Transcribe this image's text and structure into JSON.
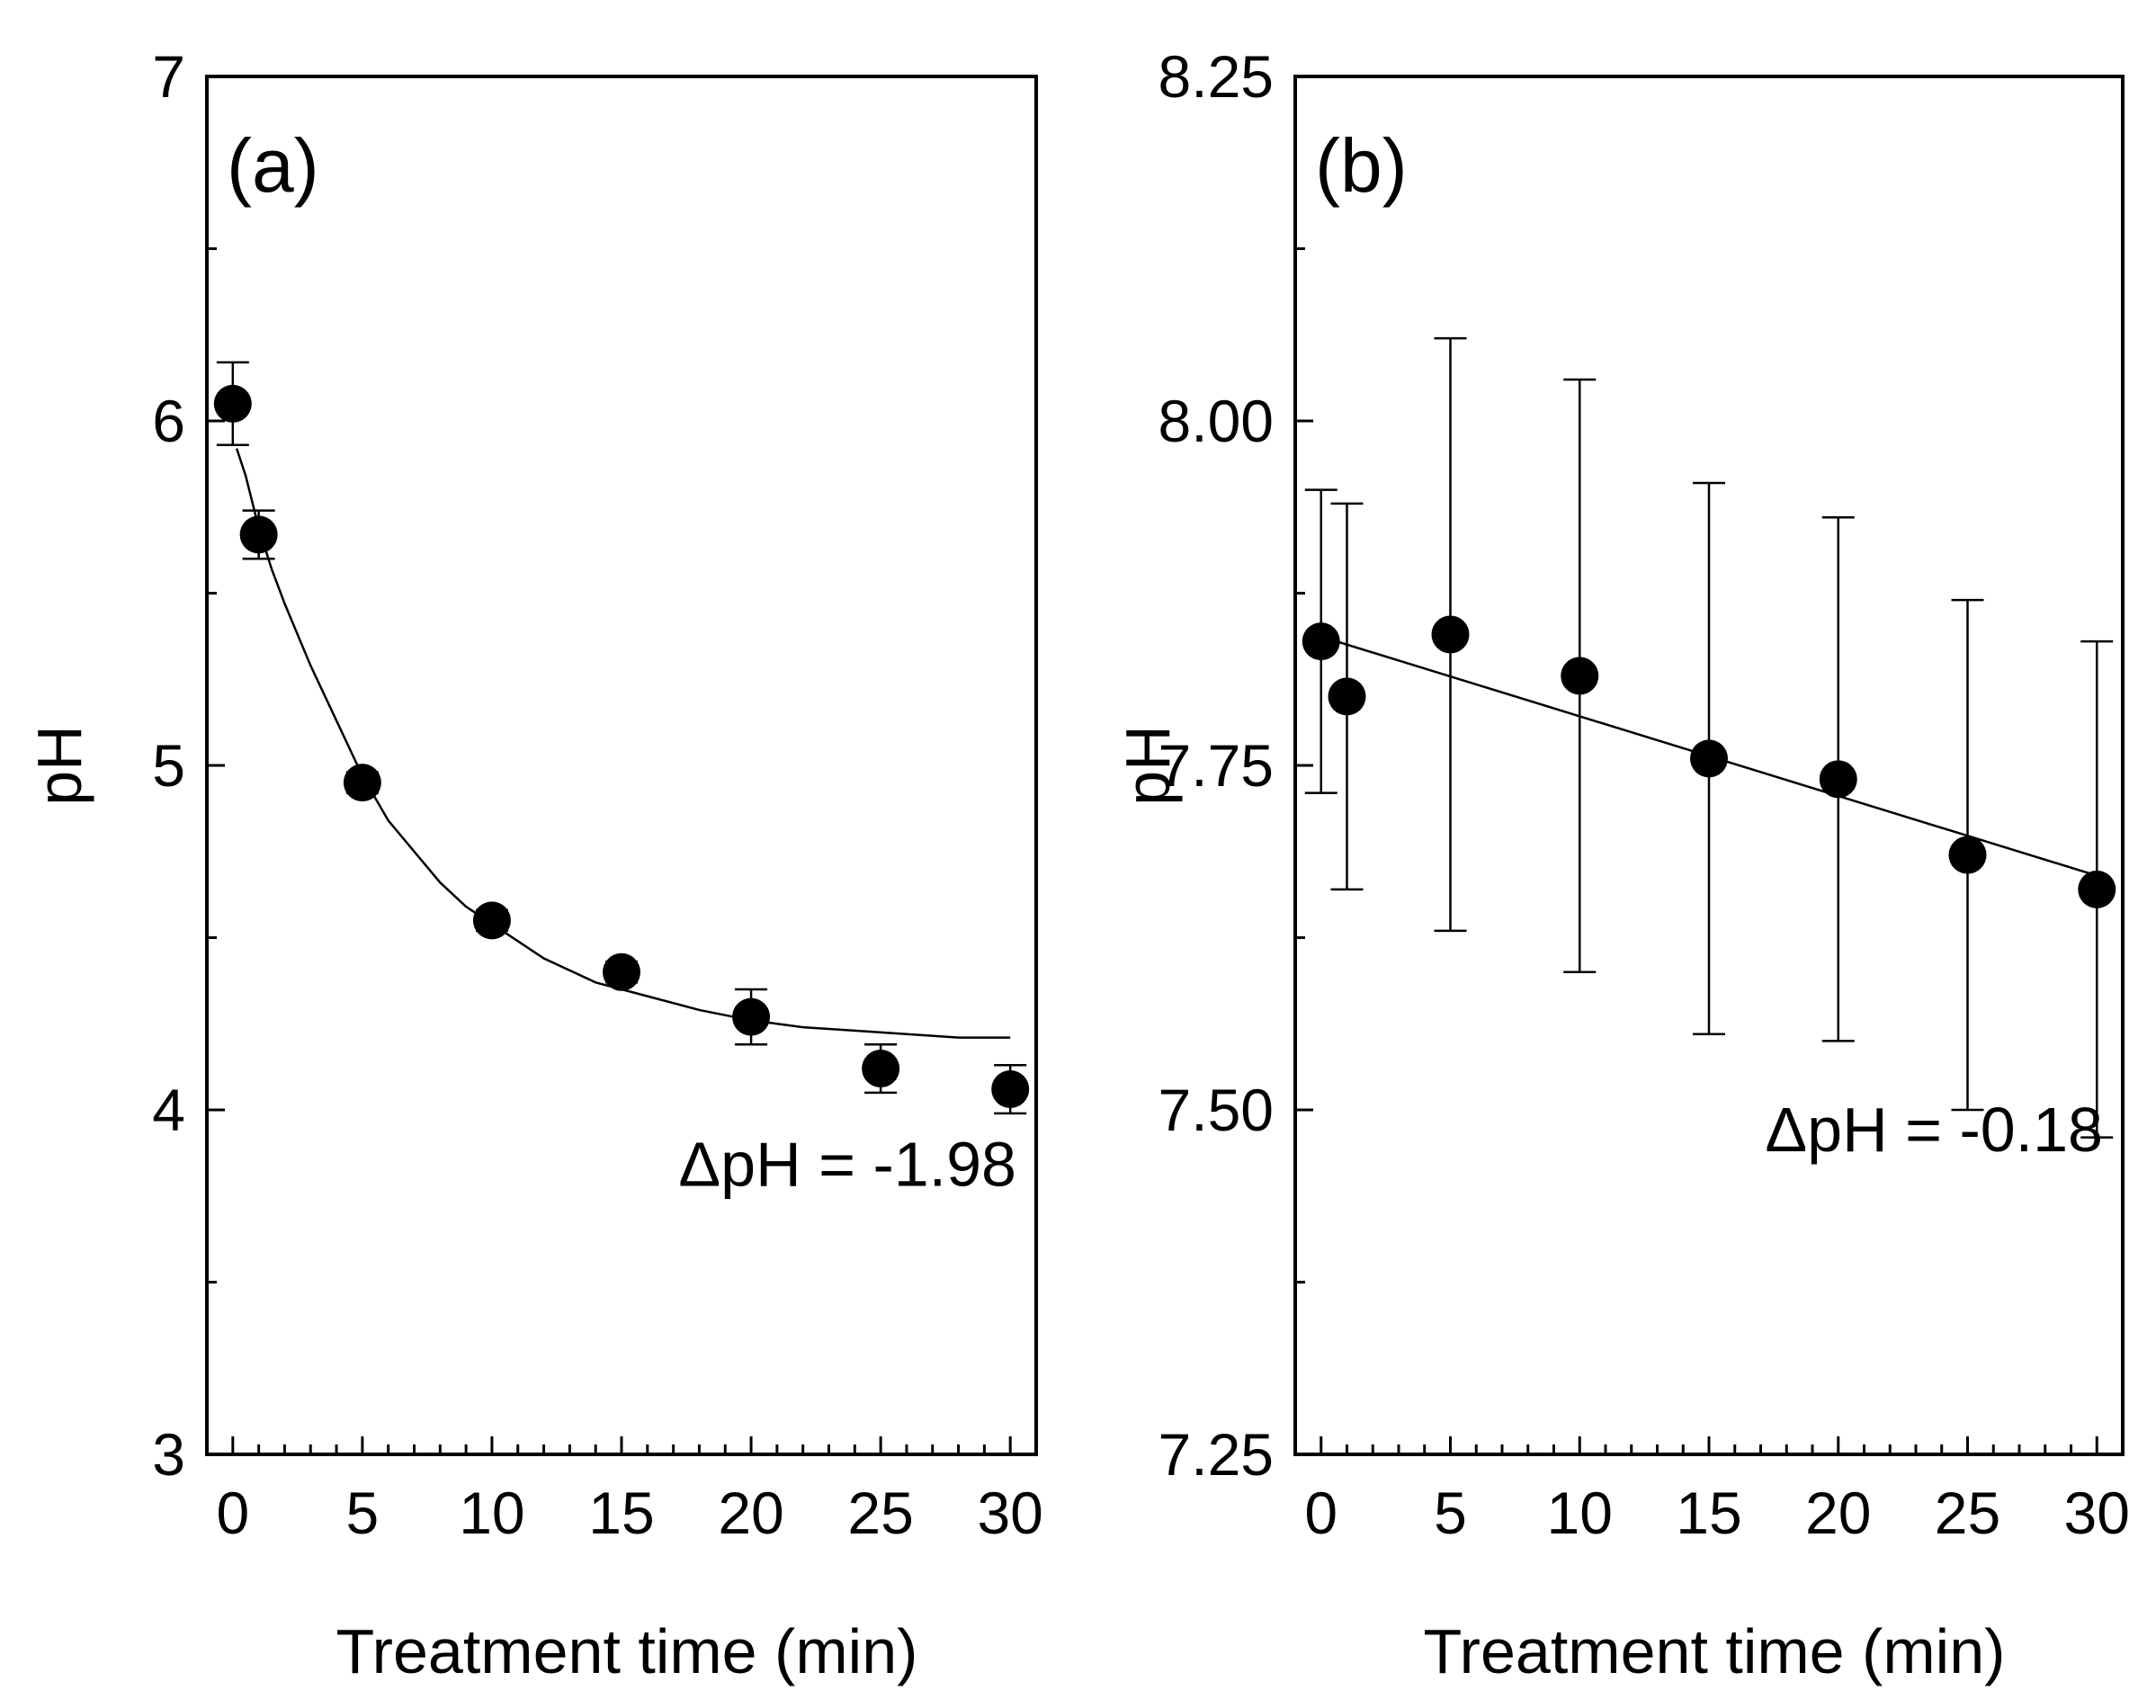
{
  "chart_data": [
    {
      "type": "scatter",
      "panel_label": "(a)",
      "xlabel": "Treatment time (min)",
      "ylabel": "pH",
      "xlim": [
        -1,
        31
      ],
      "ylim": [
        3,
        7
      ],
      "xticks": [
        0,
        5,
        10,
        15,
        20,
        25,
        30
      ],
      "xtick_labels": [
        "0",
        "5",
        "10",
        "15",
        "20",
        "25",
        "30"
      ],
      "yticks": [
        3,
        4,
        5,
        6,
        7
      ],
      "ytick_labels": [
        "3",
        "4",
        "5",
        "6",
        "7"
      ],
      "annotation": "ΔpH = -1.98",
      "grid": false,
      "series": [
        {
          "x": [
            0,
            1,
            5,
            10,
            15,
            20,
            25,
            30
          ],
          "y": [
            6.05,
            5.67,
            4.95,
            4.55,
            4.4,
            4.27,
            4.12,
            4.06
          ],
          "error": [
            0.12,
            0.07,
            0.03,
            0.03,
            0.03,
            0.08,
            0.07,
            0.07
          ]
        }
      ],
      "fit": {
        "type": "exponential decay",
        "x": [
          0.15,
          0.5,
          1,
          1.5,
          2,
          3,
          4,
          5,
          6,
          7,
          8,
          9,
          10,
          12,
          14,
          16,
          18,
          20,
          22,
          24,
          26,
          28,
          30
        ],
        "y": [
          5.92,
          5.84,
          5.69,
          5.57,
          5.47,
          5.29,
          5.13,
          4.97,
          4.84,
          4.75,
          4.66,
          4.59,
          4.54,
          4.44,
          4.37,
          4.33,
          4.29,
          4.26,
          4.24,
          4.23,
          4.22,
          4.21,
          4.21
        ]
      }
    },
    {
      "type": "scatter",
      "panel_label": "(b)",
      "xlabel": "Treatment time (min)",
      "ylabel": "pH",
      "xlim": [
        -1,
        31
      ],
      "ylim": [
        7.25,
        8.25
      ],
      "xticks": [
        0,
        5,
        10,
        15,
        20,
        25,
        30
      ],
      "xtick_labels": [
        "0",
        "5",
        "10",
        "15",
        "20",
        "25",
        "30"
      ],
      "yticks": [
        7.25,
        7.5,
        7.75,
        8.0,
        8.25
      ],
      "ytick_labels": [
        "7.25",
        "7.50",
        "7.75",
        "8.00",
        "8.25"
      ],
      "annotation": "ΔpH = -0.18",
      "grid": false,
      "series": [
        {
          "x": [
            0,
            1,
            5,
            10,
            15,
            20,
            25,
            30
          ],
          "y": [
            7.84,
            7.8,
            7.845,
            7.815,
            7.755,
            7.74,
            7.685,
            7.66
          ],
          "error": [
            0.11,
            0.14,
            0.215,
            0.215,
            0.2,
            0.19,
            0.185,
            0.18
          ]
        }
      ],
      "fit": {
        "type": "linear",
        "x": [
          0.6,
          30
        ],
        "y": [
          7.84,
          7.67
        ]
      }
    }
  ]
}
